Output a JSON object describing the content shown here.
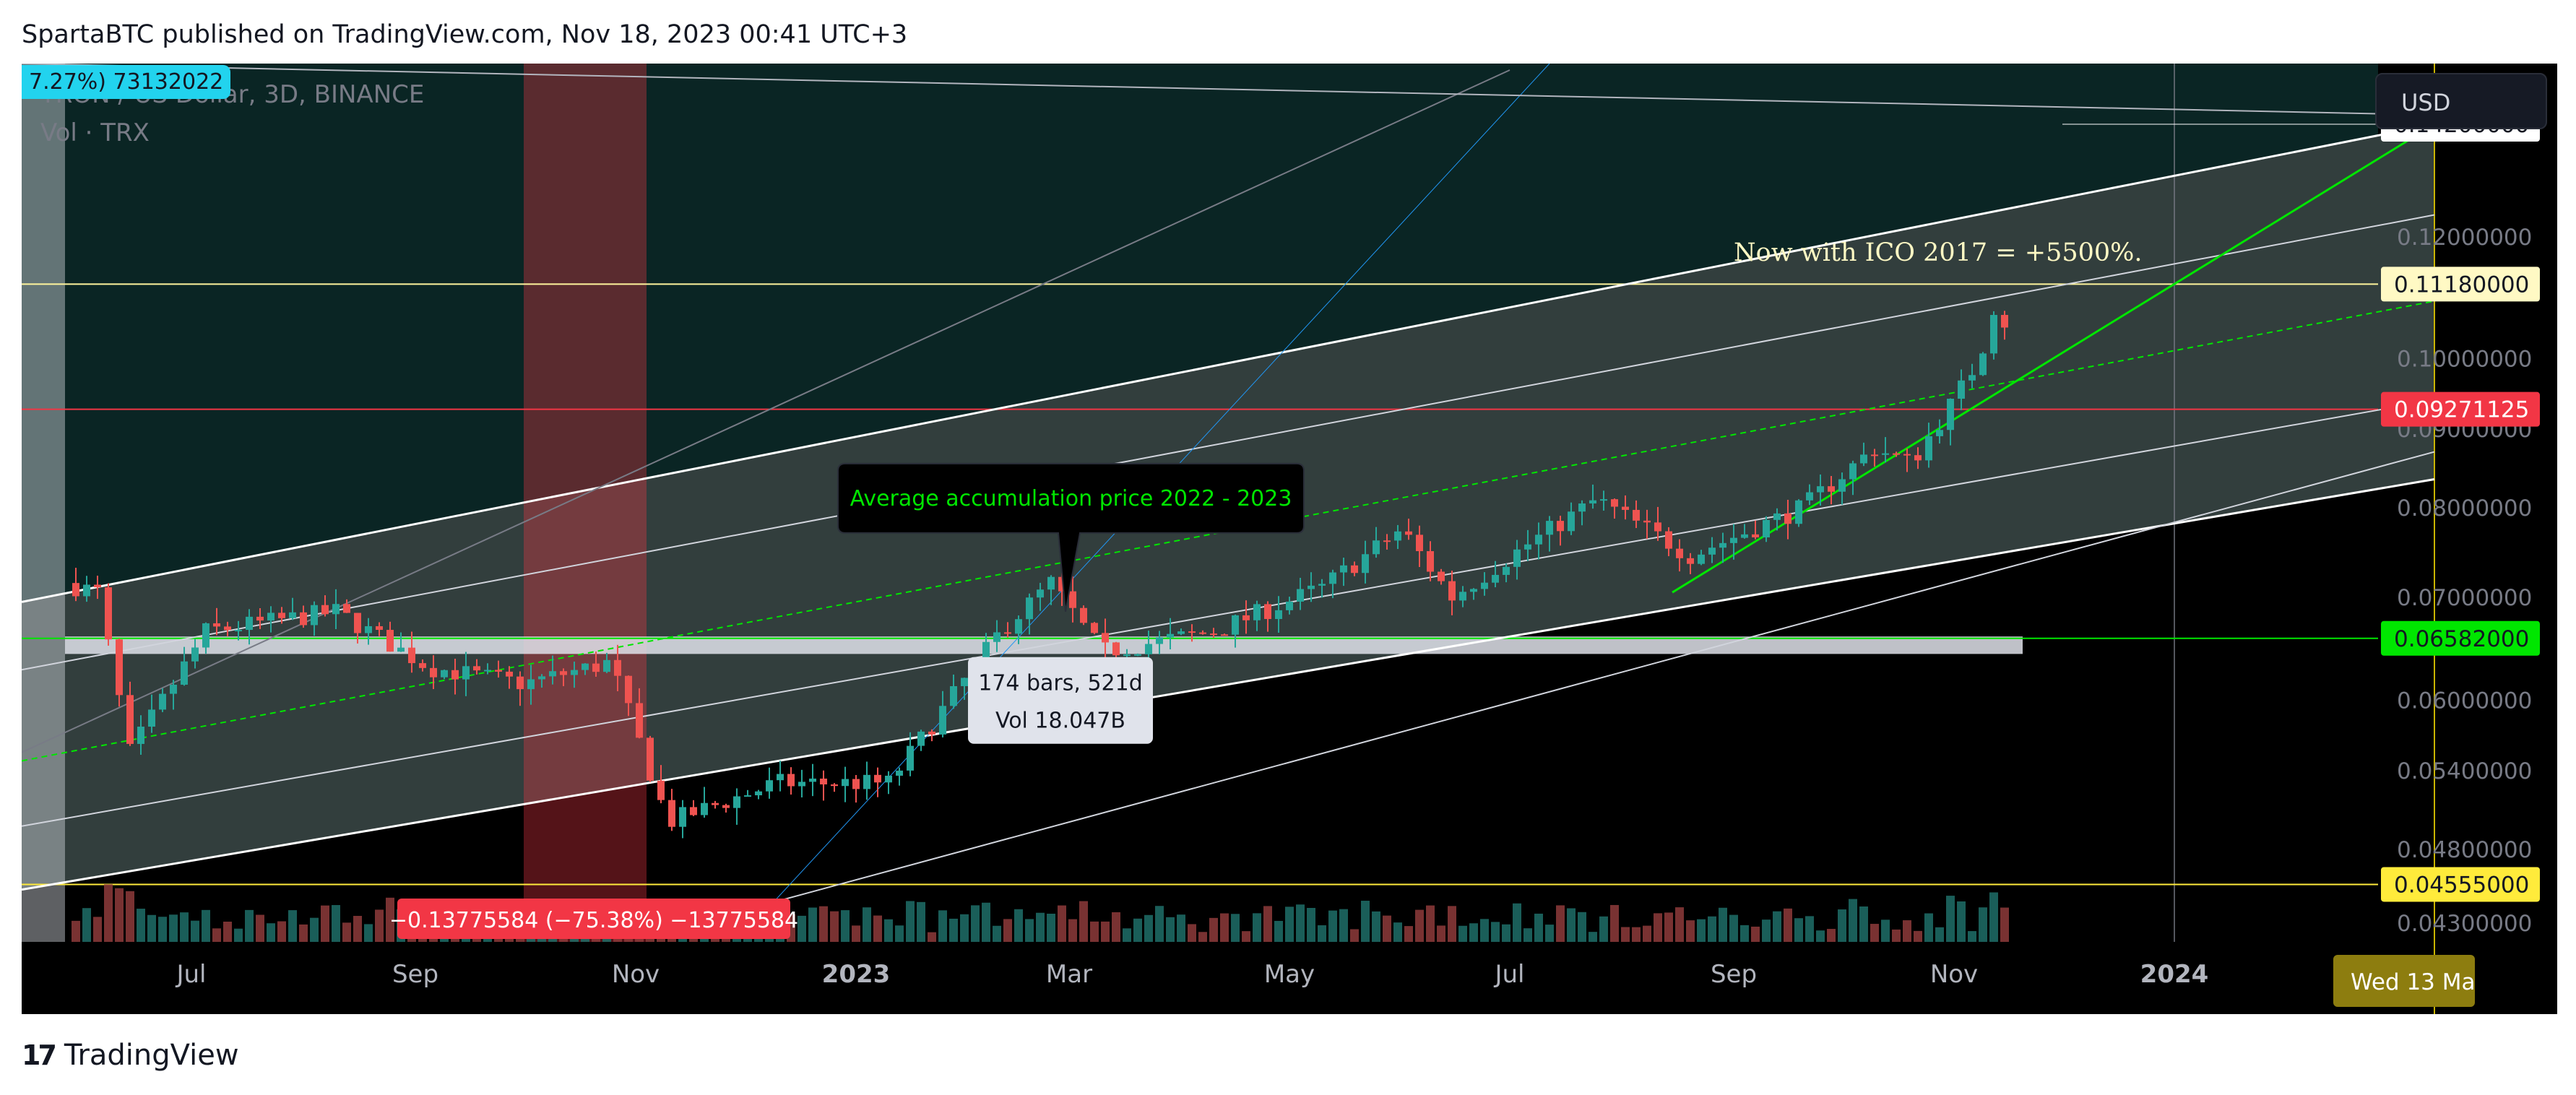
{
  "header": {
    "published_text": "SpartaBTC published on TradingView.com, Nov 18, 2023 00:41 UTC+3"
  },
  "legend": {
    "symbol_line": "TRON / US Dollar, 3D, BINANCE",
    "vol_line": "Vol · TRX",
    "change_tag": "7.27%) 73132022"
  },
  "currency_button": {
    "label": "USD"
  },
  "footer": {
    "brand": "TradingView"
  },
  "chart_data": {
    "type": "candlestick",
    "symbol": "TRON / US Dollar",
    "timeframe": "3D",
    "exchange": "BINANCE",
    "y_scale": "log",
    "ylim": [
      0.0418,
      0.1555
    ],
    "x_ticks": [
      {
        "label": "Jul",
        "date": "2022-07-01",
        "bold": false
      },
      {
        "label": "Sep",
        "date": "2022-09-01",
        "bold": false
      },
      {
        "label": "Nov",
        "date": "2022-11-01",
        "bold": false
      },
      {
        "label": "2023",
        "date": "2023-01-01",
        "bold": true
      },
      {
        "label": "Mar",
        "date": "2023-03-01",
        "bold": false
      },
      {
        "label": "May",
        "date": "2023-05-01",
        "bold": false
      },
      {
        "label": "Jul",
        "date": "2023-07-01",
        "bold": false
      },
      {
        "label": "Sep",
        "date": "2023-09-01",
        "bold": false
      },
      {
        "label": "Nov",
        "date": "2023-11-01",
        "bold": false
      },
      {
        "label": "2024",
        "date": "2024-01-01",
        "bold": true
      }
    ],
    "y_ticks": [
      "0.12000000",
      "0.10000000",
      "0.09000000",
      "0.08000000",
      "0.07000000",
      "0.06000000",
      "0.05400000",
      "0.04800000",
      "0.04300000"
    ],
    "y_tick_values": [
      0.12,
      0.1,
      0.09,
      0.08,
      0.07,
      0.06,
      0.054,
      0.048,
      0.043
    ],
    "price_tags": [
      {
        "label": "0.14200000",
        "value": 0.142,
        "bg": "#ffffff",
        "fg": "#131722"
      },
      {
        "label": "0.11180000",
        "value": 0.1118,
        "bg": "#fff9c4",
        "fg": "#131722"
      },
      {
        "label": "0.09271125",
        "value": 0.09271125,
        "bg": "#f23645",
        "fg": "#ffffff"
      },
      {
        "label": "0.06582000",
        "value": 0.06582,
        "bg": "#00e600",
        "fg": "#131722"
      },
      {
        "label": "0.04555000",
        "value": 0.04555,
        "bg": "#ffeb3b",
        "fg": "#131722"
      }
    ],
    "date_tag": "Wed 13 Ma",
    "anchors": [
      {
        "date": "2022-05-27",
        "price": 0.0715
      },
      {
        "date": "2022-06-05",
        "price": 0.0705
      },
      {
        "date": "2022-06-14",
        "price": 0.0555
      },
      {
        "date": "2022-07-05",
        "price": 0.0665
      },
      {
        "date": "2022-08-10",
        "price": 0.0685
      },
      {
        "date": "2022-09-05",
        "price": 0.063
      },
      {
        "date": "2022-10-01",
        "price": 0.0615
      },
      {
        "date": "2022-10-25",
        "price": 0.0635
      },
      {
        "date": "2022-11-10",
        "price": 0.05
      },
      {
        "date": "2022-12-10",
        "price": 0.053
      },
      {
        "date": "2023-01-10",
        "price": 0.053
      },
      {
        "date": "2023-02-10",
        "price": 0.0665
      },
      {
        "date": "2023-02-24",
        "price": 0.0715
      },
      {
        "date": "2023-03-10",
        "price": 0.0645
      },
      {
        "date": "2023-04-10",
        "price": 0.0665
      },
      {
        "date": "2023-05-10",
        "price": 0.071
      },
      {
        "date": "2023-06-01",
        "price": 0.0775
      },
      {
        "date": "2023-06-15",
        "price": 0.07
      },
      {
        "date": "2023-07-05",
        "price": 0.0755
      },
      {
        "date": "2023-07-25",
        "price": 0.081
      },
      {
        "date": "2023-08-20",
        "price": 0.0745
      },
      {
        "date": "2023-09-20",
        "price": 0.08
      },
      {
        "date": "2023-10-10",
        "price": 0.0875
      },
      {
        "date": "2023-10-20",
        "price": 0.0855
      },
      {
        "date": "2023-11-01",
        "price": 0.094
      },
      {
        "date": "2023-11-08",
        "price": 0.1
      },
      {
        "date": "2023-11-12",
        "price": 0.108
      },
      {
        "date": "2023-11-17",
        "price": 0.104
      }
    ],
    "channel_lines": [
      {
        "p1": {
          "date": "2022-05-15",
          "price": 0.0695
        },
        "p2": {
          "date": "2024-03-13",
          "price": 0.142
        },
        "color": "#ffffff",
        "width": 3
      },
      {
        "p1": {
          "date": "2022-05-15",
          "price": 0.0628
        },
        "p2": {
          "date": "2024-03-13",
          "price": 0.124
        },
        "color": "#d1d4dc",
        "width": 2
      },
      {
        "p1": {
          "date": "2022-05-15",
          "price": 0.0548
        },
        "p2": {
          "date": "2024-03-13",
          "price": 0.109
        },
        "color": "#00e600",
        "width": 2,
        "dashed": true
      },
      {
        "p1": {
          "date": "2022-05-15",
          "price": 0.0497
        },
        "p2": {
          "date": "2024-03-13",
          "price": 0.094
        },
        "color": "#d1d4dc",
        "width": 2
      },
      {
        "p1": {
          "date": "2022-05-15",
          "price": 0.0452
        },
        "p2": {
          "date": "2024-03-13",
          "price": 0.0835
        },
        "color": "#ffffff",
        "width": 3
      },
      {
        "p1": {
          "date": "2022-11-10",
          "price": 0.0425
        },
        "p2": {
          "date": "2024-03-13",
          "price": 0.087
        },
        "color": "#d1d4dc",
        "width": 2
      },
      {
        "p1": {
          "date": "2022-05-15",
          "price": 0.0555
        },
        "p2": {
          "date": "2023-07-01",
          "price": 0.154
        },
        "color": "#787b86",
        "width": 2
      },
      {
        "p1": {
          "date": "2022-12-01",
          "price": 0.0423
        },
        "p2": {
          "date": "2023-07-12",
          "price": 0.1555
        },
        "color": "#2196f3",
        "width": 1
      },
      {
        "p1": {
          "date": "2023-08-15",
          "price": 0.0705
        },
        "p2": {
          "date": "2024-03-13",
          "price": 0.142
        },
        "color": "#00e600",
        "width": 3
      },
      {
        "p1": {
          "date": "2022-05-15",
          "price": 0.1555
        },
        "p2": {
          "date": "2024-03-13",
          "price": 0.144
        },
        "color": "#b2b5be",
        "width": 2
      },
      {
        "p1": {
          "date": "2023-12-01",
          "price": 0.142
        },
        "p2": {
          "date": "2024-03-13",
          "price": 0.142
        },
        "color": "#ffffff",
        "width": 1
      }
    ],
    "horizontal_lines": [
      {
        "price": 0.1118,
        "color": "#fff59d"
      },
      {
        "price": 0.09271125,
        "color": "#f23645"
      },
      {
        "price": 0.06582,
        "color": "#00e600"
      },
      {
        "price": 0.04555,
        "color": "#ffeb3b"
      }
    ],
    "zones": [
      {
        "start": "2022-10-01",
        "end": "2022-11-04",
        "color": "#f23645",
        "opacity": 0.35
      },
      {
        "start": "2022-05-15",
        "end": "2022-05-27",
        "color": "#d1d4dc",
        "opacity": 0.45
      }
    ],
    "accumulation_band": {
      "start": "2022-05-27",
      "end": "2023-11-20",
      "top": 0.066,
      "bottom": 0.0643
    },
    "annotations": {
      "ico_text": "Now with ICO 2017 = +5500%.",
      "ico_anchor": {
        "date": "2023-09-01",
        "price": 0.1158
      },
      "callout_text": "Average accumulation price 2022 - 2023",
      "callout_tip": {
        "date": "2023-02-28",
        "price": 0.0685
      },
      "measure_line1": "174 bars, 521d",
      "measure_line2": "Vol 18.047B",
      "change_label": "−0.13775584 (−75.38%) −13775584"
    }
  }
}
